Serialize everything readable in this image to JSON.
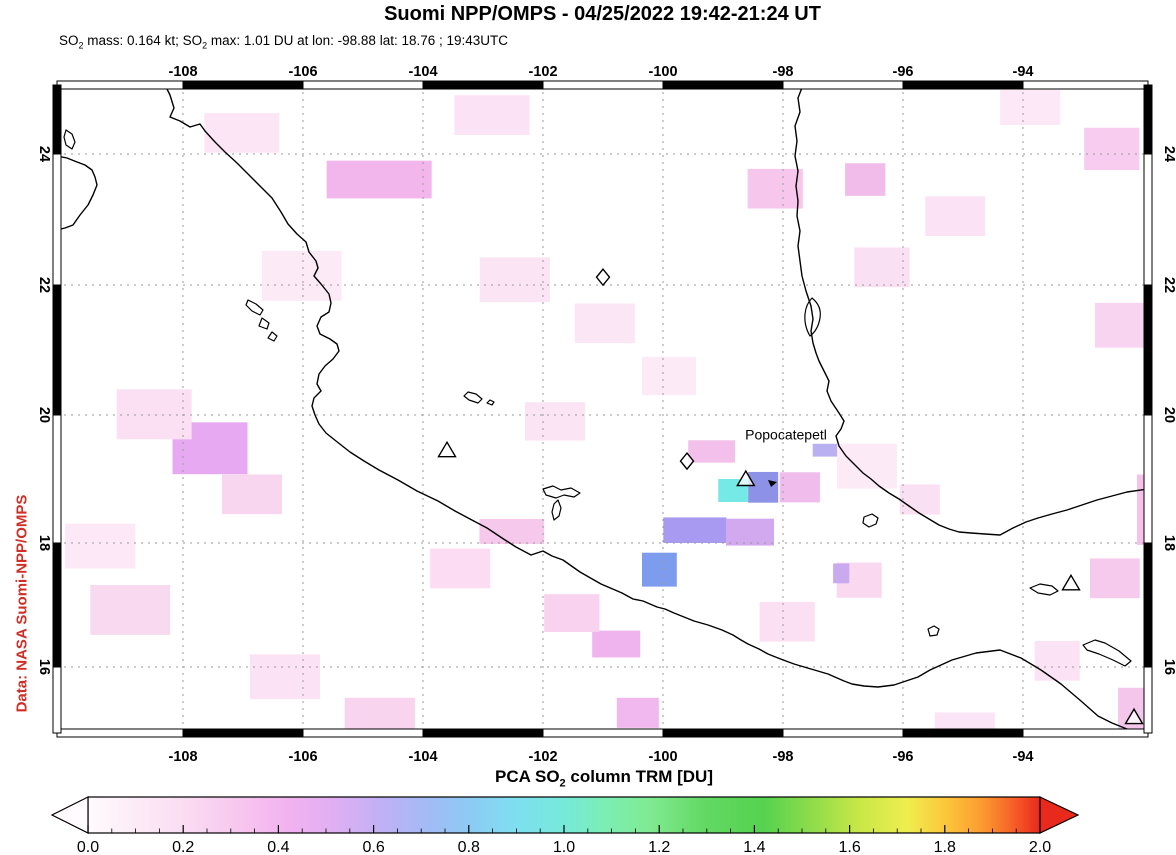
{
  "header": {
    "title": "Suomi NPP/OMPS - 04/25/2022 19:42-21:24 UT",
    "subtitle_parts": [
      "SO",
      "2",
      " mass: 0.164 kt; ",
      "SO",
      "2",
      " max: 1.01 DU at lon: -98.88 lat: 18.76 ; 19:43UTC"
    ]
  },
  "credit_label": "Data: NASA Suomi-NPP/OMPS",
  "colors": {
    "credit_text": "#cf2f26",
    "gridline": "#9a9a9a",
    "coastline": "#000000",
    "background": "#ffffff"
  },
  "map": {
    "lon_ticks": [
      -108,
      -106,
      -104,
      -102,
      -100,
      -98,
      -96,
      -94
    ],
    "lat_ticks": [
      24,
      22,
      20,
      18,
      16
    ],
    "volcano_label": {
      "text": "Popocatepetl",
      "lon": -97.95,
      "lat": 19.62
    },
    "triangle_markers": [
      {
        "lon": -103.6,
        "lat": 19.45
      },
      {
        "lon": -98.62,
        "lat": 19.0
      },
      {
        "lon": -93.2,
        "lat": 17.35
      },
      {
        "lon": -92.15,
        "lat": 15.18
      }
    ],
    "diamond_markers": [
      {
        "lon": -101.0,
        "lat": 22.12
      },
      {
        "lon": -99.6,
        "lat": 19.28
      }
    ],
    "so2_patches": [
      {
        "lon": -98.83,
        "lat": 18.82,
        "w": 0.5,
        "h": 0.36,
        "c": "#74e9e6"
      },
      {
        "lon": -98.33,
        "lat": 18.87,
        "w": 0.5,
        "h": 0.48,
        "c": "#8e92e6"
      },
      {
        "lon": -99.47,
        "lat": 18.2,
        "w": 1.05,
        "h": 0.4,
        "c": "#a89af0"
      },
      {
        "lon": -98.55,
        "lat": 18.17,
        "w": 0.8,
        "h": 0.42,
        "c": "#d2a8ee"
      },
      {
        "lon": -100.06,
        "lat": 17.57,
        "w": 0.58,
        "h": 0.53,
        "c": "#7e9cee"
      },
      {
        "lon": -99.19,
        "lat": 19.43,
        "w": 0.78,
        "h": 0.35,
        "c": "#f3c0ec"
      },
      {
        "lon": -97.72,
        "lat": 18.87,
        "w": 0.67,
        "h": 0.47,
        "c": "#f0bcec"
      },
      {
        "lon": -107.55,
        "lat": 19.48,
        "w": 1.25,
        "h": 0.81,
        "c": "#e7aaf2"
      },
      {
        "lon": -104.73,
        "lat": 23.61,
        "w": 1.75,
        "h": 0.59,
        "c": "#f2b6ec"
      },
      {
        "lon": -96.63,
        "lat": 23.61,
        "w": 0.67,
        "h": 0.51,
        "c": "#f2bcea"
      },
      {
        "lon": -98.13,
        "lat": 23.47,
        "w": 0.92,
        "h": 0.62,
        "c": "#f6c6ec"
      },
      {
        "lon": -92.52,
        "lat": 24.08,
        "w": 0.92,
        "h": 0.66,
        "c": "#f7ccee"
      },
      {
        "lon": -92.3,
        "lat": 21.38,
        "w": 1.0,
        "h": 0.7,
        "c": "#f9d4f0"
      },
      {
        "lon": -100.78,
        "lat": 16.37,
        "w": 0.8,
        "h": 0.42,
        "c": "#efb4ee"
      },
      {
        "lon": -100.42,
        "lat": 15.25,
        "w": 0.7,
        "h": 0.47,
        "c": "#f0b8ee"
      },
      {
        "lon": -91.95,
        "lat": 15.31,
        "w": 0.93,
        "h": 0.67,
        "c": "#f5c6ec"
      },
      {
        "lon": -92.47,
        "lat": 17.43,
        "w": 0.83,
        "h": 0.62,
        "c": "#f6caec"
      },
      {
        "lon": -91.8,
        "lat": 18.52,
        "w": 0.6,
        "h": 1.1,
        "c": "#f4c2ea"
      },
      {
        "lon": -107.02,
        "lat": 24.33,
        "w": 1.25,
        "h": 0.62,
        "c": "#fce6f6"
      },
      {
        "lon": -102.85,
        "lat": 24.61,
        "w": 1.25,
        "h": 0.62,
        "c": "#fbe2f4"
      },
      {
        "lon": -106.02,
        "lat": 22.14,
        "w": 1.33,
        "h": 0.78,
        "c": "#fceaf6"
      },
      {
        "lon": -102.47,
        "lat": 22.08,
        "w": 1.17,
        "h": 0.7,
        "c": "#fbe4f4"
      },
      {
        "lon": -100.97,
        "lat": 21.41,
        "w": 1.0,
        "h": 0.62,
        "c": "#fbe6f5"
      },
      {
        "lon": -108.48,
        "lat": 20.01,
        "w": 1.25,
        "h": 0.78,
        "c": "#fbdff2"
      },
      {
        "lon": -106.85,
        "lat": 18.76,
        "w": 1.0,
        "h": 0.62,
        "c": "#f8d6ef"
      },
      {
        "lon": -108.88,
        "lat": 16.92,
        "w": 1.33,
        "h": 0.78,
        "c": "#f9d9ef"
      },
      {
        "lon": -109.38,
        "lat": 17.95,
        "w": 1.17,
        "h": 0.7,
        "c": "#fce8f6"
      },
      {
        "lon": -95.13,
        "lat": 23.05,
        "w": 1.0,
        "h": 0.62,
        "c": "#fbe2f4"
      },
      {
        "lon": -93.88,
        "lat": 24.73,
        "w": 1.0,
        "h": 0.55,
        "c": "#fce8f6"
      },
      {
        "lon": -96.35,
        "lat": 22.27,
        "w": 0.92,
        "h": 0.62,
        "c": "#fae0f3"
      },
      {
        "lon": -102.52,
        "lat": 18.18,
        "w": 1.08,
        "h": 0.39,
        "c": "#f6c8ec"
      },
      {
        "lon": -103.38,
        "lat": 17.59,
        "w": 1.0,
        "h": 0.62,
        "c": "#fbdcf2"
      },
      {
        "lon": -101.52,
        "lat": 16.87,
        "w": 0.92,
        "h": 0.59,
        "c": "#f8d2ee"
      },
      {
        "lon": -96.73,
        "lat": 17.4,
        "w": 0.75,
        "h": 0.55,
        "c": "#f9d8f0"
      },
      {
        "lon": -97.93,
        "lat": 16.73,
        "w": 0.92,
        "h": 0.62,
        "c": "#fbe0f3"
      },
      {
        "lon": -95.72,
        "lat": 18.68,
        "w": 0.67,
        "h": 0.47,
        "c": "#fae0f3"
      },
      {
        "lon": -93.43,
        "lat": 16.1,
        "w": 0.75,
        "h": 0.62,
        "c": "#fbe2f4"
      },
      {
        "lon": -94.97,
        "lat": 15.11,
        "w": 1.0,
        "h": 0.28,
        "c": "#fbe4f5"
      },
      {
        "lon": -104.72,
        "lat": 15.23,
        "w": 1.17,
        "h": 0.51,
        "c": "#f8d4ef"
      },
      {
        "lon": -106.3,
        "lat": 15.84,
        "w": 1.17,
        "h": 0.7,
        "c": "#fbe2f4"
      },
      {
        "lon": -97.03,
        "lat": 17.51,
        "w": 0.27,
        "h": 0.31,
        "c": "#c9aaee"
      },
      {
        "lon": -97.28,
        "lat": 19.45,
        "w": 0.45,
        "h": 0.2,
        "c": "#b8b0f0"
      },
      {
        "lon": -96.6,
        "lat": 19.2,
        "w": 1.0,
        "h": 0.7,
        "c": "#fceaf7"
      },
      {
        "lon": -101.8,
        "lat": 19.9,
        "w": 1.0,
        "h": 0.6,
        "c": "#fbe4f4"
      },
      {
        "lon": -99.9,
        "lat": 20.6,
        "w": 0.9,
        "h": 0.6,
        "c": "#fceaf7"
      }
    ],
    "coastline_paths": [
      "M165,85 L170,95 L174,108 L170,117 L180,121 L190,127 L200,124 L205,131 L215,142 L225,152 L237,163 L250,176 L262,188 L272,198 L281,212 L288,224 L297,234 L306,242 L309,252 L316,261 L318,268 L314,276 L321,284 L329,294 L331,303 L329,312 L321,317 L317,326 L320,334 L330,339 L337,344 L339,351 L333,359 L325,366 L319,374 L317,384 L321,391 L314,398 L312,406 L315,415 L319,424 L326,433 L336,441 L350,452 L364,461 L379,470 L398,480 L417,491 L438,501 L455,511 L470,519 L487,528 L502,538 L516,547 L531,555 L543,551 L552,556 L563,560 L580,572 L601,584 L622,593 L633,599 L643,601 L657,607 L665,609 L674,613 L684,617 L694,621 L708,625 L722,630 L733,635 L741,640 L748,644 L759,649 L768,654 L778,658 L794,664 L811,669 L828,674 L844,681 L852,684 L864,686 L878,687 L894,685 L918,677 L930,670 L952,660 L976,653 L1000,650 L1021,658 L1041,670 L1061,684 L1081,701 L1098,716 L1112,723 L1127,729 L1140,733",
      "M803,85 L798,98 L800,112 L795,126 L797,141 L795,156 L798,171 L796,186 L798,201 L797,216 L800,231 L798,246 L800,261 L802,276 L806,291 L811,306 L813,319 L811,331 L813,343 L816,353 L819,361 L824,371 L829,381 L827,391 L831,401 L839,413 L844,421 L841,429 L836,436 L839,446 L846,456 L856,466 L863,473 L871,479 L879,486 L889,493 L899,499 L909,506 L919,513 L929,519 L939,525 L949,529 L959,532 L971,533 L985,534 L1000,535 L1013,528 L1026,522 L1038,518 L1052,514 L1067,510 L1082,505 L1097,500 L1112,496 L1127,492 L1148,489",
      "M57,156 L67,158 L77,162 L85,165 L92,170 L95,177 L97,185 L93,195 L88,205 L80,215 L73,225 L65,228 L57,230"
    ],
    "island_paths": [
      "M66,130 L72,134 L75,142 L72,149 L66,145 L64,137 Z",
      "M248,300 L256,304 L263,310 L260,315 L252,311 L246,305 Z",
      "M262,318 L269,323 L267,329 L259,326 Z",
      "M272,332 L277,336 L274,341 L268,338 Z",
      "M468,392 L476,394 L482,399 L478,403 L469,400 L464,396 Z",
      "M490,400 L494,402 L492,405 L487,403 Z",
      "M543,489 L553,486 L561,490 L571,488 L580,493 L574,497 L564,495 L556,498 L546,495 Z",
      "M558,500 L561,508 L559,516 L554,520 L552,512 L554,504 Z",
      "M864,517 L872,514 L878,518 L876,524 L869,527 L863,523 Z",
      "M1030,588 L1040,584 L1052,586 L1058,591 L1050,595 L1038,593 Z",
      "M1083,645 L1095,640 L1105,643 L1119,651 L1131,661 L1125,666 L1113,660 L1099,654 L1087,650 Z",
      "M928,629 L934,626 L939,629 L937,635 L930,636 Z",
      "M812,298 Q822,306 820,318 Q818,330 810,336 Q804,326 805,314 Q806,304 812,298 Z"
    ],
    "spot_paths": [
      "M768,480 L777,482 L771,487 Z"
    ]
  },
  "colorbar": {
    "title_parts": [
      "PCA SO",
      "2",
      " column TRM [DU]"
    ],
    "tick_labels": [
      "0.0",
      "0.2",
      "0.4",
      "0.6",
      "0.8",
      "1.0",
      "1.2",
      "1.4",
      "1.6",
      "1.8",
      "2.0"
    ],
    "range": [
      0.0,
      2.0
    ],
    "under_arrow_color": "#fffbfe",
    "over_arrow_color": "#e8291c",
    "gradient_stops": [
      {
        "at": 0.0,
        "c": "#fffbfe"
      },
      {
        "at": 0.08,
        "c": "#fdeef8"
      },
      {
        "at": 0.2,
        "c": "#faddf2"
      },
      {
        "at": 0.32,
        "c": "#f7c6ee"
      },
      {
        "at": 0.42,
        "c": "#f2b2f0"
      },
      {
        "at": 0.52,
        "c": "#dfaff3"
      },
      {
        "at": 0.62,
        "c": "#c0b0f5"
      },
      {
        "at": 0.72,
        "c": "#a1bcf6"
      },
      {
        "at": 0.8,
        "c": "#8ecaf4"
      },
      {
        "at": 0.9,
        "c": "#7edff0"
      },
      {
        "at": 1.0,
        "c": "#77e9da"
      },
      {
        "at": 1.08,
        "c": "#7beeb8"
      },
      {
        "at": 1.18,
        "c": "#80ea92"
      },
      {
        "at": 1.3,
        "c": "#62d862"
      },
      {
        "at": 1.42,
        "c": "#55d24f"
      },
      {
        "at": 1.52,
        "c": "#8edc4c"
      },
      {
        "at": 1.62,
        "c": "#c8e748"
      },
      {
        "at": 1.72,
        "c": "#eeee4e"
      },
      {
        "at": 1.8,
        "c": "#fbc83c"
      },
      {
        "at": 1.88,
        "c": "#fb9a30"
      },
      {
        "at": 1.95,
        "c": "#f55a26"
      },
      {
        "at": 2.0,
        "c": "#e8291c"
      }
    ]
  }
}
